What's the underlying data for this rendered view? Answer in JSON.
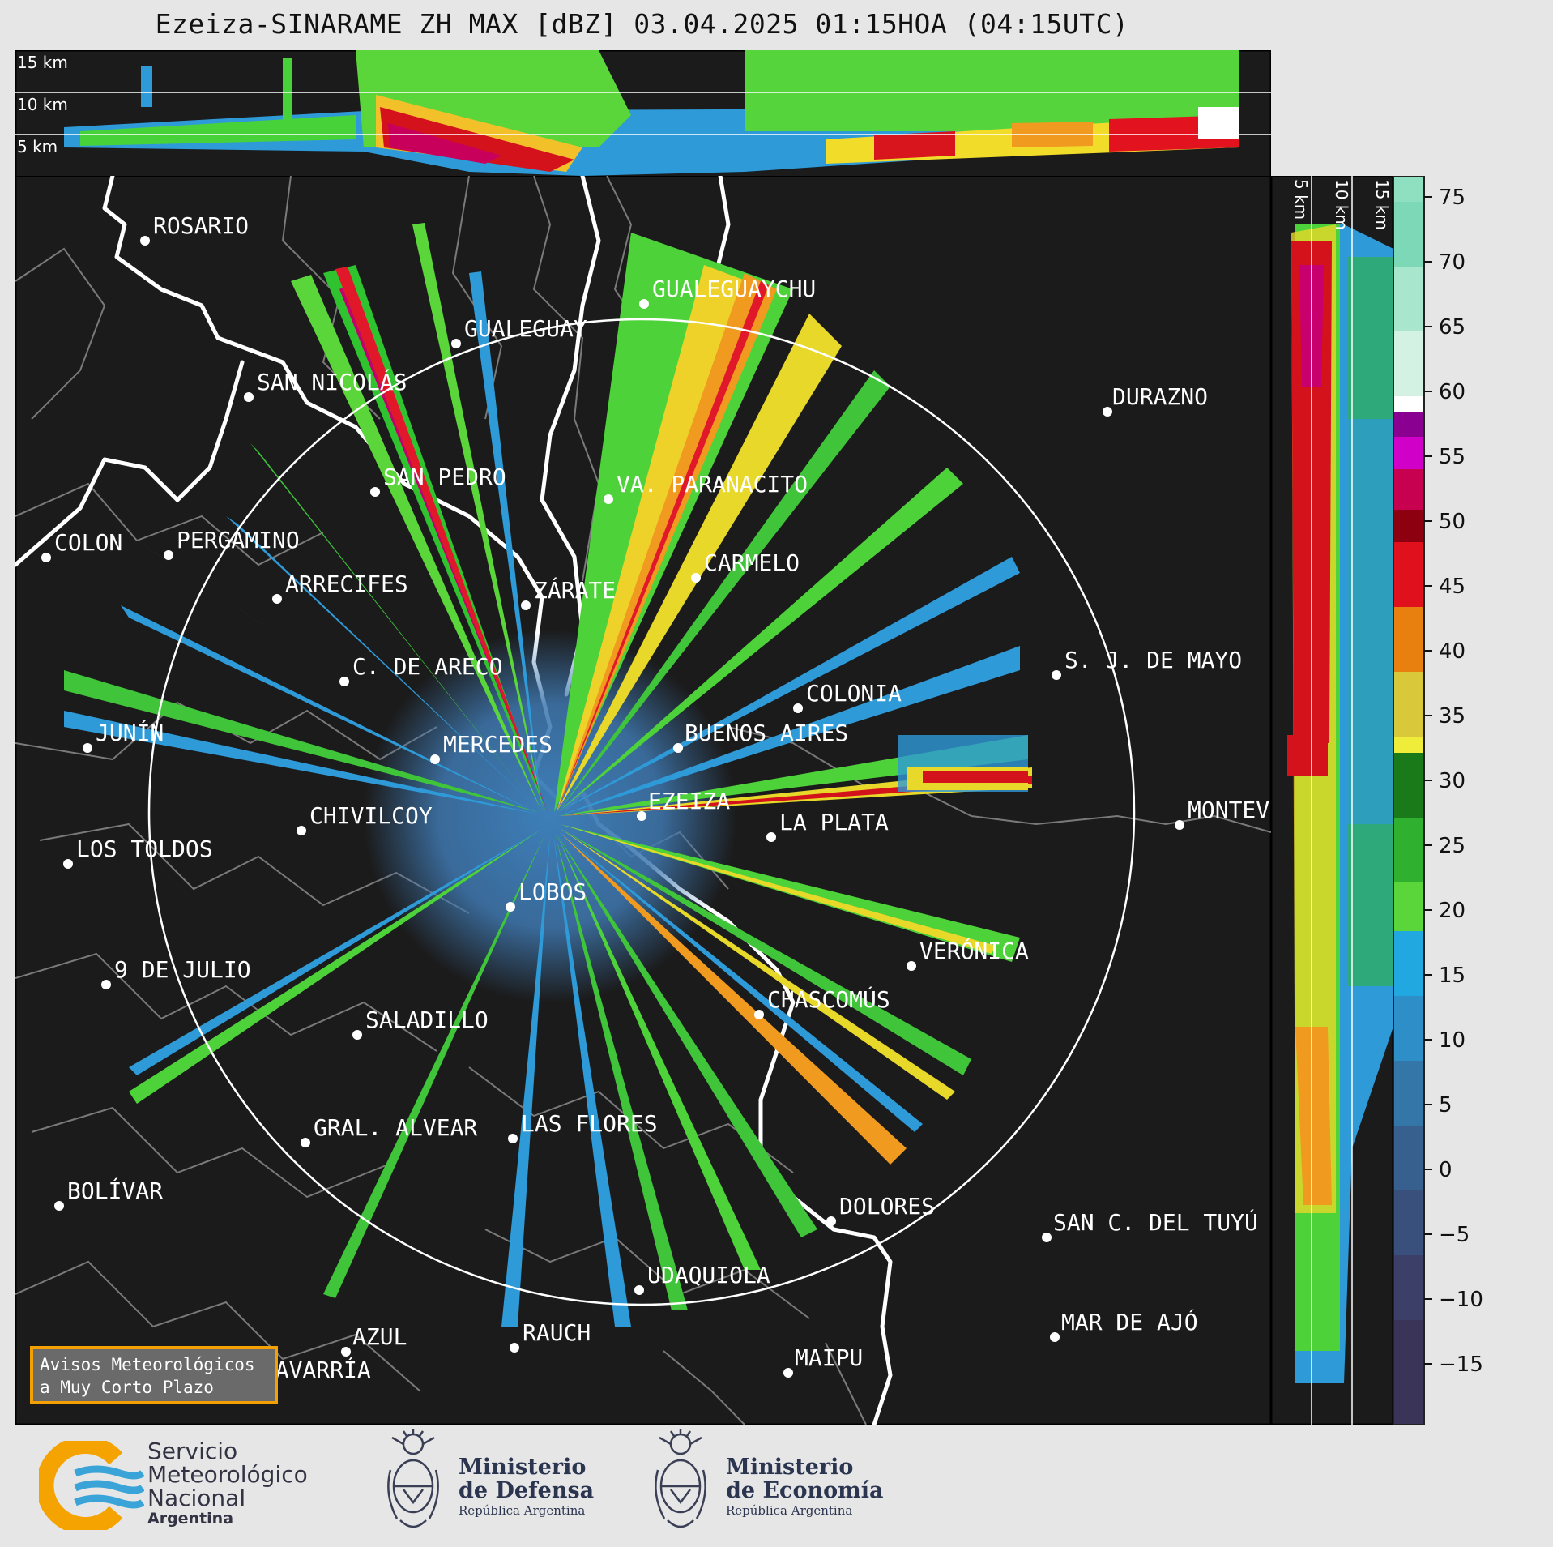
{
  "title": "Ezeiza-SINARAME ZH MAX [dBZ] 03.04.2025 01:15HOA (04:15UTC)",
  "top_panel": {
    "height_labels": [
      "15 km",
      "10 km",
      "5 km"
    ]
  },
  "right_panel": {
    "height_labels": [
      "5 km",
      "10 km",
      "15 km"
    ]
  },
  "colorbar": {
    "unit": "dBZ",
    "ticks": [
      "75",
      "70",
      "65",
      "60",
      "55",
      "50",
      "45",
      "40",
      "35",
      "30",
      "25",
      "20",
      "15",
      "10",
      "5",
      "0",
      "−5",
      "−10",
      "−15"
    ]
  },
  "cities": [
    {
      "name": "ROSARIO"
    },
    {
      "name": "GUALEGUAYCHU"
    },
    {
      "name": "GUALEGUAY"
    },
    {
      "name": "SAN NICOLÁS"
    },
    {
      "name": "DURAZNO"
    },
    {
      "name": "SAN PEDRO"
    },
    {
      "name": "VA. PARANACITO"
    },
    {
      "name": "COLON"
    },
    {
      "name": "PERGAMINO"
    },
    {
      "name": "CARMELO"
    },
    {
      "name": "ARRECIFES"
    },
    {
      "name": "ZÁRATE"
    },
    {
      "name": "C. DE ARECO"
    },
    {
      "name": "S. J. DE MAYO"
    },
    {
      "name": "COLONIA"
    },
    {
      "name": "JUNÍN"
    },
    {
      "name": "BUENOS AIRES"
    },
    {
      "name": "MERCEDES"
    },
    {
      "name": "EZEIZA"
    },
    {
      "name": "MONTEVIDEO"
    },
    {
      "name": "CHIVILCOY"
    },
    {
      "name": "LA PLATA"
    },
    {
      "name": "LOS TOLDOS"
    },
    {
      "name": "LOBOS"
    },
    {
      "name": "VERÓNICA"
    },
    {
      "name": "9 DE JULIO"
    },
    {
      "name": "CHASCOMÚS"
    },
    {
      "name": "SALADILLO"
    },
    {
      "name": "GRAL. ALVEAR"
    },
    {
      "name": "LAS FLORES"
    },
    {
      "name": "BOLÍVAR"
    },
    {
      "name": "DOLORES"
    },
    {
      "name": "SAN C. DEL TUYÚ"
    },
    {
      "name": "UDAQUIOLA"
    },
    {
      "name": "MAR DE AJÓ"
    },
    {
      "name": "RAUCH"
    },
    {
      "name": "AZUL"
    },
    {
      "name": "OLAVARRÍA"
    },
    {
      "name": "MAIPU"
    }
  ],
  "avisos": {
    "line1": "Avisos Meteorológicos",
    "line2": "a Muy Corto Plazo"
  },
  "footer": {
    "smn": {
      "line1": "Servicio",
      "line2": "Meteorológico",
      "line3": "Nacional",
      "line4": "Argentina"
    },
    "defensa": {
      "line1": "Ministerio",
      "line2": "de Defensa",
      "line3": "República Argentina"
    },
    "economia": {
      "line1": "Ministerio",
      "line2": "de Economía",
      "line3": "República Argentina"
    }
  },
  "colors": {
    "background": "#1b1b1b",
    "range_ring": "#ffffff",
    "coastline": "#ffffff",
    "borders": "#808080",
    "avisos_border": "#f3a000"
  }
}
